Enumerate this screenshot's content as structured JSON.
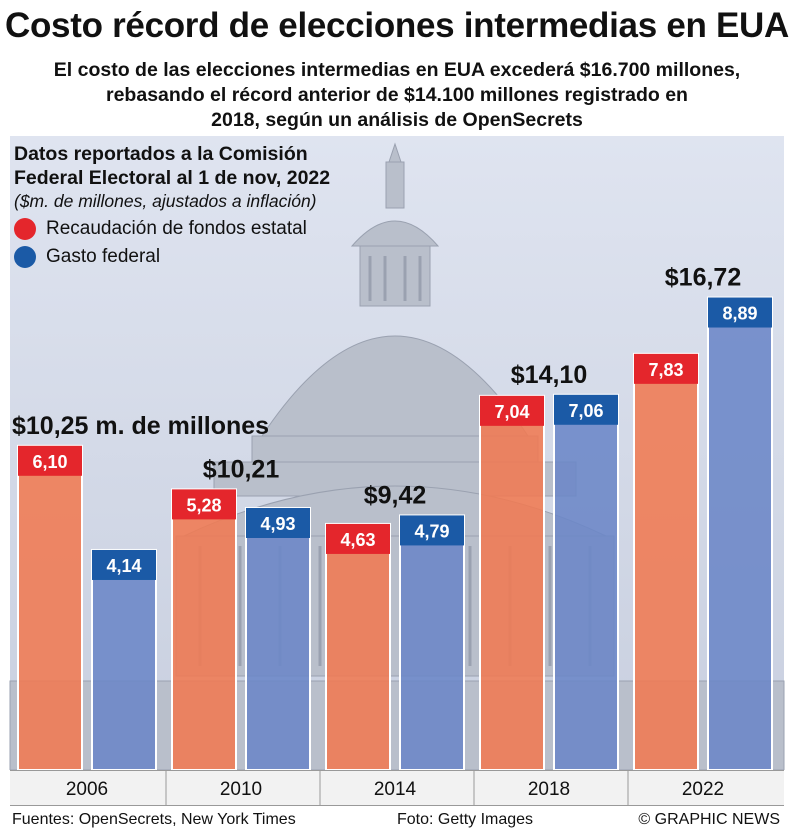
{
  "header": {
    "title": "Costo récord de elecciones intermedias en EUA",
    "subtitle_lines": [
      "El costo de las elecciones intermedias en EUA excederá $16.700 millones,",
      "rebasando el récord anterior de $14.100 millones registrado en",
      "2018, según un análisis de OpenSecrets"
    ]
  },
  "legend": {
    "heading_lines": [
      "Datos reportados a la Comisión",
      "Federal Electoral al 1 de nov, 2022"
    ],
    "note": "($m. de millones, ajustados a inflación)",
    "items": [
      {
        "label": "Recaudación de fondos estatal",
        "color": "#e4262c"
      },
      {
        "label": "Gasto federal",
        "color": "#1b5aa6"
      }
    ]
  },
  "chart_data": {
    "type": "bar",
    "categories": [
      "2006",
      "2010",
      "2014",
      "2018",
      "2022"
    ],
    "series": [
      {
        "name": "Recaudación de fondos estatal",
        "values": [
          6.1,
          5.28,
          4.63,
          7.04,
          7.83
        ],
        "labels": [
          "6,10",
          "5,28",
          "4,63",
          "7,04",
          "7,83"
        ],
        "color": "#f07a52",
        "label_color": "#e4262c"
      },
      {
        "name": "Gasto federal",
        "values": [
          4.14,
          4.93,
          4.79,
          7.06,
          8.89
        ],
        "labels": [
          "4,14",
          "4,93",
          "4,79",
          "7,06",
          "8,89"
        ],
        "color": "#6b86c7",
        "label_color": "#1b5aa6"
      }
    ],
    "totals": [
      "$10,25 m. de millones",
      "$10,21",
      "$9,42",
      "$14,10",
      "$16,72"
    ],
    "ylim": [
      0,
      9.5
    ]
  },
  "footer": {
    "sources": "Fuentes: OpenSecrets, New York Times",
    "photo": "Foto: Getty Images",
    "credit": "© GRAPHIC NEWS"
  }
}
